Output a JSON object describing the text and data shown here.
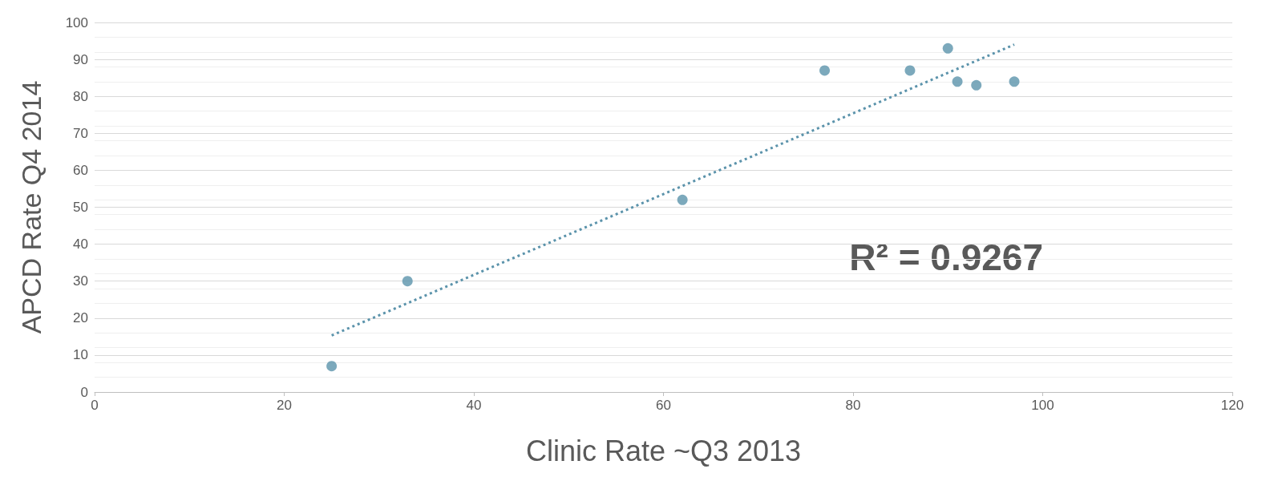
{
  "chart_data": {
    "type": "scatter",
    "xlabel": "Clinic Rate ~Q3 2013",
    "ylabel": "APCD Rate Q4 2014",
    "xlim": [
      0,
      120
    ],
    "xticks": [
      0,
      20,
      40,
      60,
      80,
      100,
      120
    ],
    "ylim": [
      0,
      100
    ],
    "yticks": [
      0,
      10,
      20,
      30,
      40,
      50,
      60,
      70,
      80,
      90,
      100
    ],
    "grid": "y",
    "marker": "circle",
    "annotations": [
      "R² = 0.9267"
    ],
    "series": [
      {
        "color": "#5b93ab",
        "x": [
          25,
          33,
          62,
          77,
          86,
          90,
          91,
          93,
          97
        ],
        "values": [
          7,
          30,
          52,
          87,
          87,
          93,
          84,
          83,
          84
        ]
      },
      {
        "type": "line",
        "color": "#5b93ab",
        "line_style": "dotted",
        "marker": "none",
        "x": [
          25,
          97
        ],
        "values": [
          15.3,
          94
        ]
      }
    ]
  }
}
